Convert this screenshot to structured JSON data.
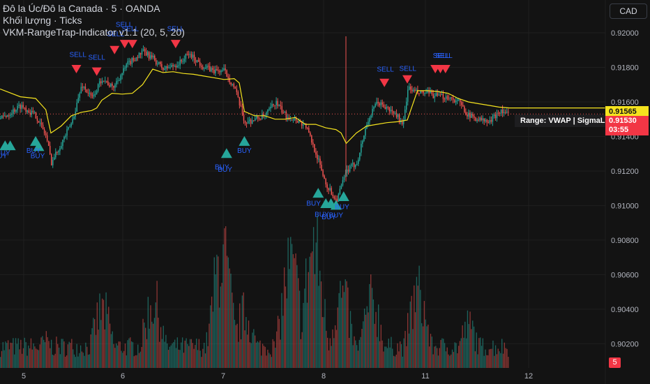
{
  "header": {
    "symbol_line": "Đô la Úc/Đô la Canada · 5 · OANDA",
    "volume_line": "Khối lượng · Ticks",
    "indicator_line": "VKM-RangeTrap-Indicator v1.1 (20, 5, 20)",
    "currency_button": "CAD"
  },
  "labels": {
    "vwap_price": "0.91565",
    "last_price": "0.91530",
    "countdown": "03:55",
    "range_tag": "Range: VWAP | SigmaLo",
    "bottom_badge": "5"
  },
  "colors": {
    "background": "#131313",
    "up": "#26a69a",
    "down": "#ef5350",
    "vwap": "#f5e31e",
    "buy_marker": "#26a69a",
    "sell_marker": "#f23645",
    "signal_text": "#2962ff",
    "axis_text": "#b2b5be",
    "grid": "#1f1f1f"
  },
  "chart_data": {
    "type": "line",
    "x_axis": {
      "ticks": [
        "5",
        "6",
        "7",
        "8",
        "11",
        "12"
      ]
    },
    "y_axis": {
      "ticks": [
        0.92,
        0.918,
        0.916,
        0.914,
        0.912,
        0.91,
        0.908,
        0.906,
        0.904,
        0.902
      ],
      "tick_labels": [
        "0.92000",
        "0.91800",
        "0.91600",
        "0.91400",
        "0.91200",
        "0.91000",
        "0.90800",
        "0.90600",
        "0.90400",
        "0.90200"
      ],
      "range": [
        0.9006,
        0.9219
      ]
    },
    "price_series": {
      "name": "AUD/CAD 5m",
      "x": [
        0,
        4,
        7,
        9,
        10,
        14,
        16,
        18,
        20,
        22,
        25,
        28,
        30,
        32,
        35,
        37,
        40,
        42,
        44,
        46,
        48,
        50,
        52,
        54,
        56,
        58,
        60,
        62,
        64,
        66,
        68,
        70,
        72,
        74,
        76,
        78,
        79,
        80,
        82,
        84,
        86,
        88,
        90,
        92,
        94,
        96,
        98,
        100
      ],
      "y": [
        0.915,
        0.9158,
        0.9152,
        0.914,
        0.9125,
        0.9148,
        0.917,
        0.9162,
        0.9174,
        0.9168,
        0.9182,
        0.9189,
        0.9185,
        0.9179,
        0.9182,
        0.9188,
        0.918,
        0.9178,
        0.9178,
        0.9168,
        0.9148,
        0.915,
        0.9152,
        0.916,
        0.9152,
        0.915,
        0.9146,
        0.913,
        0.9112,
        0.9103,
        0.912,
        0.9125,
        0.9148,
        0.916,
        0.9156,
        0.9152,
        0.9145,
        0.9168,
        0.9165,
        0.9165,
        0.9163,
        0.9163,
        0.916,
        0.9152,
        0.915,
        0.9148,
        0.9155,
        0.9153
      ]
    },
    "vwap_series": {
      "name": "VWAP",
      "x": [
        0,
        4,
        7,
        9,
        10,
        12,
        14,
        16,
        18,
        19,
        20,
        22,
        24,
        26,
        28,
        30,
        32,
        34,
        36,
        38,
        40,
        42,
        44,
        46,
        47,
        48,
        50,
        52,
        54,
        56,
        58,
        59,
        60,
        62,
        64,
        66,
        67,
        68,
        70,
        72,
        74,
        76,
        78,
        80,
        82,
        84,
        86,
        88,
        90,
        92,
        94,
        96,
        98,
        100
      ],
      "y": [
        0.91675,
        0.9163,
        0.9162,
        0.91555,
        0.9142,
        0.9146,
        0.9152,
        0.9154,
        0.9155,
        0.91565,
        0.9161,
        0.9165,
        0.91645,
        0.9165,
        0.917,
        0.9179,
        0.9177,
        0.91775,
        0.91765,
        0.9176,
        0.9175,
        0.9174,
        0.9173,
        0.91735,
        0.9171,
        0.91545,
        0.9152,
        0.9152,
        0.915,
        0.915,
        0.9151,
        0.9149,
        0.9147,
        0.9147,
        0.9145,
        0.9144,
        0.9142,
        0.9136,
        0.9142,
        0.9146,
        0.9147,
        0.9148,
        0.91485,
        0.91495,
        0.91665,
        0.91665,
        0.9166,
        0.9165,
        0.9162,
        0.916,
        0.9159,
        0.9158,
        0.9157,
        0.91565
      ]
    },
    "buy_signals": [
      {
        "x": 1.0,
        "y": 0.91345
      },
      {
        "x": 2.0,
        "y": 0.91345
      },
      {
        "x": 7.0,
        "y": 0.9137
      },
      {
        "x": 7.6,
        "y": 0.9134
      },
      {
        "x": 44.5,
        "y": 0.913
      },
      {
        "x": 48.0,
        "y": 0.9137
      },
      {
        "x": 62.5,
        "y": 0.9107
      },
      {
        "x": 64.0,
        "y": 0.9101
      },
      {
        "x": 65.0,
        "y": 0.9101
      },
      {
        "x": 66.0,
        "y": 0.91
      },
      {
        "x": 67.5,
        "y": 0.9105
      }
    ],
    "sell_signals": [
      {
        "x": 15.0,
        "y": 0.9179
      },
      {
        "x": 19.0,
        "y": 0.91775
      },
      {
        "x": 22.5,
        "y": 0.919
      },
      {
        "x": 24.5,
        "y": 0.91935
      },
      {
        "x": 26.0,
        "y": 0.91935
      },
      {
        "x": 34.5,
        "y": 0.91935
      },
      {
        "x": 75.5,
        "y": 0.9171
      },
      {
        "x": 80.0,
        "y": 0.9173
      },
      {
        "x": 85.5,
        "y": 0.9179
      },
      {
        "x": 86.5,
        "y": 0.9179
      },
      {
        "x": 87.5,
        "y": 0.9179
      }
    ],
    "buy_labels": [
      {
        "x": 0.6,
        "y": 0.9129,
        "text": "BUY"
      },
      {
        "x": 0.0,
        "y": 0.91275,
        "text": "BUY"
      },
      {
        "x": 6.6,
        "y": 0.91305,
        "text": "BUY"
      },
      {
        "x": 7.4,
        "y": 0.91275,
        "text": "BUY"
      },
      {
        "x": 43.6,
        "y": 0.9121,
        "text": "BUY"
      },
      {
        "x": 44.2,
        "y": 0.91195,
        "text": "BUY"
      },
      {
        "x": 48.0,
        "y": 0.91305,
        "text": "BUY"
      },
      {
        "x": 61.6,
        "y": 0.91,
        "text": "BUY"
      },
      {
        "x": 63.2,
        "y": 0.90935,
        "text": "BUY"
      },
      {
        "x": 64.6,
        "y": 0.9092,
        "text": "BUY"
      },
      {
        "x": 66.0,
        "y": 0.9093,
        "text": "BUY"
      },
      {
        "x": 67.2,
        "y": 0.9098,
        "text": "BUY"
      }
    ],
    "sell_labels": [
      {
        "x": 15.3,
        "y": 0.9186,
        "text": "SELL"
      },
      {
        "x": 19.0,
        "y": 0.91845,
        "text": "SELL"
      },
      {
        "x": 22.7,
        "y": 0.9198,
        "text": "SELL"
      },
      {
        "x": 24.4,
        "y": 0.92035,
        "text": "SELL"
      },
      {
        "x": 25.6,
        "y": 0.9201,
        "text": "SELL"
      },
      {
        "x": 34.5,
        "y": 0.9201,
        "text": "SELL"
      },
      {
        "x": 75.7,
        "y": 0.91775,
        "text": "SELL"
      },
      {
        "x": 80.1,
        "y": 0.9178,
        "text": "SELL"
      },
      {
        "x": 86.7,
        "y": 0.91855,
        "text": "SELL"
      },
      {
        "x": 87.2,
        "y": 0.91855,
        "text": "SELL"
      }
    ],
    "volume_profile": {
      "bars": 400,
      "peaks": [
        {
          "x": 9,
          "level": 0.22
        },
        {
          "x": 20,
          "level": 0.48
        },
        {
          "x": 30,
          "level": 0.55
        },
        {
          "x": 43.5,
          "level": 0.95
        },
        {
          "x": 48,
          "level": 0.45
        },
        {
          "x": 57,
          "level": 0.85
        },
        {
          "x": 61.5,
          "level": 1.0
        },
        {
          "x": 67,
          "level": 0.6
        },
        {
          "x": 73,
          "level": 0.55
        },
        {
          "x": 82,
          "level": 0.62
        },
        {
          "x": 92,
          "level": 0.35
        }
      ],
      "base_level": 0.18
    }
  }
}
